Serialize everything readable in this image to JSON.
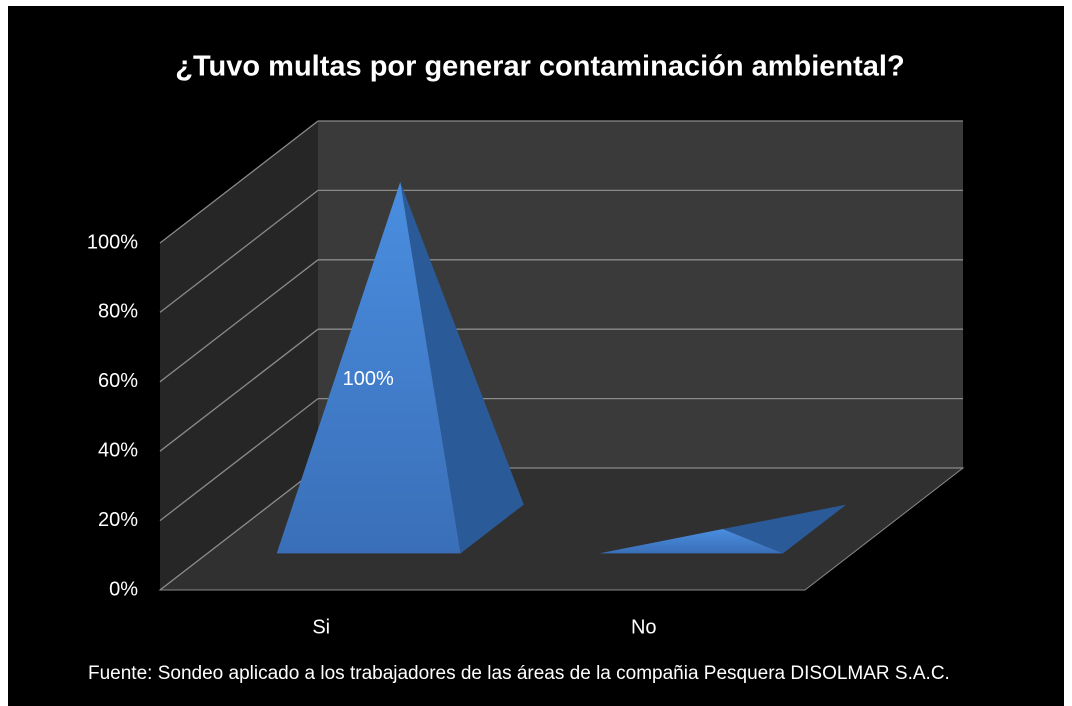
{
  "chart_data": {
    "type": "pyramid3d",
    "title": "¿Tuvo multas por generar contaminación ambiental?",
    "categories": [
      "Si",
      "No"
    ],
    "values": [
      100,
      0
    ],
    "value_labels": [
      "100%",
      null
    ],
    "color": "#3f80d4",
    "ylim": [
      0,
      100
    ],
    "yticks": [
      {
        "value": 0,
        "label": "0%"
      },
      {
        "value": 20,
        "label": "20%"
      },
      {
        "value": 40,
        "label": "40%"
      },
      {
        "value": 60,
        "label": "60%"
      },
      {
        "value": 80,
        "label": "80%"
      },
      {
        "value": 100,
        "label": "100%"
      }
    ],
    "grid": true,
    "footnote": "Fuente: Sondeo aplicado a los trabajadores de las áreas de la compañia Pesquera DISOLMAR S.A.C."
  }
}
